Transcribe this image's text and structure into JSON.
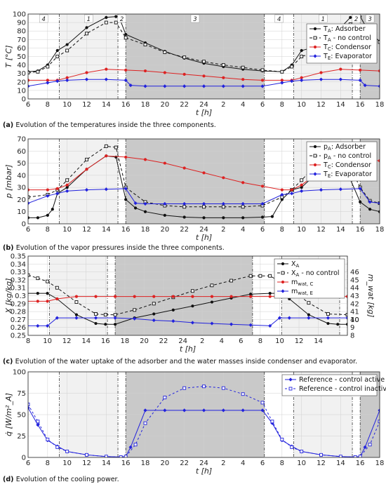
{
  "chart_data": [
    {
      "type": "line",
      "panel": "a",
      "caption_label": "(a)",
      "caption": "Evolution of the temperatures inside the three components.",
      "xlabel": "t [h]",
      "ylabel": "T [°C]",
      "ylim": [
        0,
        100
      ],
      "yticks": [
        0,
        10,
        20,
        30,
        40,
        50,
        60,
        70,
        80,
        90,
        100
      ],
      "xticklabels": [
        "6",
        "8",
        "10",
        "12",
        "14",
        "16",
        "18",
        "20",
        "22",
        "24",
        "2",
        "4",
        "6",
        "8",
        "10",
        "12",
        "14",
        "16",
        "18"
      ],
      "phase_labels": [
        "4",
        "1",
        "2",
        "3",
        "4",
        "1",
        "2",
        "3"
      ],
      "legend": "top-right",
      "grid": true,
      "series": [
        {
          "name": "T_A: Adsorber",
          "legend_main": "T",
          "legend_sub": "A",
          "legend_rest": ": Adsorber",
          "color": "#111111",
          "dash": "",
          "marker": "dot",
          "x": [
            6,
            7,
            8,
            9,
            10,
            12,
            14,
            15,
            15.3,
            16,
            18,
            20,
            22,
            24,
            26,
            28,
            30,
            32,
            33,
            34,
            36,
            38,
            39,
            40,
            41,
            42
          ],
          "y": [
            32,
            33,
            40,
            57,
            64,
            84,
            96,
            97,
            97,
            76,
            66,
            56,
            48,
            42,
            38,
            35,
            33,
            32,
            40,
            57,
            63,
            84,
            96,
            97,
            77,
            68
          ]
        },
        {
          "name": "T_A - no control",
          "legend_main": "T",
          "legend_sub": "A",
          "legend_rest": " - no control",
          "color": "#111111",
          "dash": "4,3",
          "marker": "square",
          "x": [
            6,
            7,
            8,
            9,
            10,
            12,
            14,
            15,
            16,
            18,
            20,
            22,
            24,
            26,
            28,
            30,
            32,
            33,
            34,
            36,
            38,
            39,
            40,
            41,
            42
          ],
          "y": [
            31,
            32,
            38,
            50,
            57,
            77,
            90,
            90,
            72,
            64,
            55,
            49,
            44,
            40,
            37,
            34,
            32,
            38,
            50,
            57,
            77,
            88,
            86,
            73,
            67
          ]
        },
        {
          "name": "T_C: Condensor",
          "legend_main": "T",
          "legend_sub": "C",
          "legend_rest": ": Condensor",
          "color": "#dd2222",
          "dash": "",
          "marker": "dot",
          "x": [
            6,
            8,
            9,
            10,
            12,
            14,
            16,
            18,
            20,
            22,
            24,
            26,
            28,
            30,
            32,
            33,
            34,
            36,
            38,
            40,
            42
          ],
          "y": [
            22,
            22,
            22,
            25,
            31,
            35,
            34,
            33,
            31,
            29,
            27,
            25,
            23,
            22,
            22,
            22,
            25,
            31,
            35,
            34,
            33
          ]
        },
        {
          "name": "T_E: Evaporator",
          "legend_main": "T",
          "legend_sub": "E",
          "legend_rest": ": Evaporator",
          "color": "#2222dd",
          "dash": "",
          "marker": "diamond",
          "x": [
            6,
            8,
            9,
            10,
            12,
            14,
            16,
            16.5,
            18,
            20,
            22,
            24,
            26,
            28,
            30,
            32,
            33,
            34,
            36,
            38,
            40,
            40.5,
            42
          ],
          "y": [
            15,
            19,
            21,
            22,
            23,
            23,
            22,
            16,
            15,
            15,
            15,
            15,
            15,
            15,
            15,
            19,
            21,
            22,
            23,
            23,
            22,
            16,
            15
          ]
        }
      ]
    },
    {
      "type": "line",
      "panel": "b",
      "caption_label": "(b)",
      "caption": "Evolution of the vapor pressures inside the three components.",
      "xlabel": "t [h]",
      "ylabel": "p [mbar]",
      "ylim": [
        0,
        70
      ],
      "yticks": [
        0,
        10,
        20,
        30,
        40,
        50,
        60,
        70
      ],
      "xticklabels": [
        "6",
        "8",
        "10",
        "12",
        "14",
        "16",
        "18",
        "20",
        "22",
        "24",
        "2",
        "4",
        "6",
        "8",
        "10",
        "12",
        "14",
        "16",
        "18"
      ],
      "legend": "top-right",
      "grid": true,
      "series": [
        {
          "name": "p_A: Adsorber",
          "legend_main": "p",
          "legend_sub": "A",
          "legend_rest": ": Adsorber",
          "color": "#111111",
          "dash": "",
          "marker": "dot",
          "x": [
            6,
            7,
            8,
            8.5,
            9,
            10,
            12,
            14,
            15,
            16,
            17,
            18,
            20,
            22,
            24,
            26,
            28,
            30,
            31,
            32,
            33,
            34,
            36,
            38,
            40,
            41,
            42
          ],
          "y": [
            5,
            5,
            7,
            12,
            25,
            30,
            45,
            56,
            55,
            20,
            13,
            10,
            7,
            5.5,
            5,
            5,
            5,
            5.5,
            6,
            20,
            28,
            30,
            45,
            55,
            18,
            12,
            10
          ]
        },
        {
          "name": "p_A - no control",
          "legend_main": "p",
          "legend_sub": "A",
          "legend_rest": " - no control",
          "color": "#111111",
          "dash": "4,3",
          "marker": "square",
          "x": [
            6,
            8,
            9,
            10,
            12,
            14,
            15,
            16,
            18,
            20,
            22,
            24,
            26,
            28,
            30,
            32,
            33,
            34,
            36,
            38,
            40,
            41,
            42
          ],
          "y": [
            22,
            24,
            28,
            36,
            53,
            64,
            63,
            30,
            18,
            15,
            14,
            14,
            14,
            14,
            15,
            22,
            28,
            36,
            53,
            62,
            30,
            19,
            17
          ]
        },
        {
          "name": "T_C: Condensor",
          "legend_main": "T",
          "legend_sub": "C",
          "legend_rest": ": Condensor",
          "color": "#dd2222",
          "dash": "",
          "marker": "dot",
          "x": [
            6,
            8,
            9,
            10,
            12,
            14,
            16,
            18,
            20,
            22,
            24,
            26,
            28,
            30,
            32,
            33,
            34,
            36,
            38,
            40,
            42
          ],
          "y": [
            28,
            28,
            29,
            32,
            45,
            56,
            55,
            53,
            50,
            46,
            42,
            38,
            34,
            31,
            28,
            28,
            32,
            44,
            52,
            53,
            52
          ]
        },
        {
          "name": "T_E: Evaporator",
          "legend_main": "T",
          "legend_sub": "E",
          "legend_rest": ": Evaporator",
          "color": "#2222dd",
          "dash": "",
          "marker": "diamond",
          "x": [
            6,
            8,
            9,
            10,
            12,
            14,
            16,
            17,
            18,
            20,
            22,
            24,
            26,
            28,
            30,
            32,
            33,
            34,
            36,
            38,
            40,
            41,
            42
          ],
          "y": [
            17,
            23,
            25,
            27,
            28,
            28.5,
            29,
            17,
            16.5,
            16.5,
            16.5,
            16.5,
            16.5,
            16.5,
            16.5,
            24,
            25,
            27,
            28,
            28.5,
            29,
            18,
            17
          ]
        }
      ]
    },
    {
      "type": "line",
      "panel": "c",
      "caption_label": "(c)",
      "caption": "Evolution of the water uptake of the adsorber and the water masses inside condenser and evaporator.",
      "xlabel": "t [h]",
      "ylabel": "X [kg/kg]",
      "ylabel_right": "m_wat [kg]",
      "ylim": [
        0.25,
        0.35
      ],
      "ylim_right": [
        8,
        46
      ],
      "yticks": [
        "0.25",
        "0.26",
        "0.27",
        "0.28",
        "0.29",
        "0.3",
        "0.31",
        "0.32",
        "0.33",
        "0.34",
        "0.35"
      ],
      "yticks_right": [
        "8",
        "9",
        "10",
        "40",
        "41",
        "42",
        "43",
        "44",
        "45",
        "46"
      ],
      "xticklabels": [
        "8",
        "10",
        "12",
        "14",
        "16",
        "18",
        "20",
        "22",
        "24",
        "2",
        "4",
        "6",
        "8",
        "10",
        "12",
        "14"
      ],
      "legend": "top-right",
      "grid": true,
      "series": [
        {
          "name": "X_A",
          "legend_main": "X",
          "legend_sub": "A",
          "legend_rest": "",
          "color": "#111111",
          "dash": "",
          "marker": "dot",
          "x": [
            6,
            8,
            9,
            10,
            12,
            14,
            15,
            16,
            18,
            20,
            22,
            24,
            26,
            28,
            30,
            32,
            33,
            34,
            36,
            38,
            39,
            40
          ],
          "y": [
            0.303,
            0.303,
            0.303,
            0.296,
            0.276,
            0.265,
            0.264,
            0.264,
            0.272,
            0.277,
            0.282,
            0.287,
            0.292,
            0.297,
            0.302,
            0.303,
            0.303,
            0.296,
            0.276,
            0.265,
            0.264,
            0.264
          ]
        },
        {
          "name": "X_A - no control",
          "legend_main": "X",
          "legend_sub": "A",
          "legend_rest": " - no control",
          "color": "#111111",
          "dash": "4,3",
          "marker": "square",
          "x": [
            6,
            7,
            8,
            9,
            10,
            12,
            14,
            15,
            16,
            18,
            20,
            22,
            24,
            26,
            28,
            30,
            31,
            32,
            33,
            34,
            36,
            38,
            40
          ],
          "y": [
            0.326,
            0.326,
            0.322,
            0.318,
            0.31,
            0.292,
            0.277,
            0.276,
            0.276,
            0.282,
            0.29,
            0.298,
            0.306,
            0.313,
            0.319,
            0.325,
            0.325,
            0.325,
            0.318,
            0.31,
            0.291,
            0.277,
            0.276
          ]
        },
        {
          "name": "m_wat, C",
          "legend_main": "m",
          "legend_sub": "wat, C",
          "legend_rest": "",
          "color": "#dd2222",
          "dash": "",
          "marker": "dot",
          "axis": "right",
          "x": [
            6,
            8,
            9,
            10,
            12,
            14,
            16,
            18,
            20,
            22,
            24,
            26,
            28,
            30,
            32,
            33,
            34,
            36,
            38,
            40
          ],
          "y": [
            42.3,
            42.3,
            42.3,
            42.6,
            42.9,
            42.9,
            42.9,
            42.9,
            42.9,
            42.9,
            42.9,
            42.9,
            42.9,
            42.9,
            42.9,
            42.9,
            42.9,
            42.9,
            42.9,
            42.9
          ]
        },
        {
          "name": "m_wat, E",
          "legend_main": "m",
          "legend_sub": "wat, E",
          "legend_rest": "",
          "color": "#2222dd",
          "dash": "",
          "marker": "diamond",
          "axis": "right",
          "x": [
            6,
            8,
            9,
            10,
            12,
            14,
            16,
            18,
            20,
            22,
            24,
            26,
            28,
            30,
            32,
            33,
            34,
            36,
            38,
            40
          ],
          "y": [
            9.2,
            9.2,
            9.2,
            10.2,
            10.2,
            10.2,
            10.2,
            10.1,
            9.9,
            9.8,
            9.6,
            9.5,
            9.4,
            9.3,
            9.2,
            10.2,
            10.2,
            10.2,
            10.2,
            10.2
          ]
        }
      ]
    },
    {
      "type": "line",
      "panel": "d",
      "caption_label": "(d)",
      "caption": "Evolution of the cooling power.",
      "xlabel": "t [h]",
      "ylabel": "q̇ [W/m²_A]",
      "ylim": [
        0,
        100
      ],
      "yticks": [
        0,
        25,
        50,
        75,
        100
      ],
      "xticklabels": [
        "6",
        "8",
        "10",
        "12",
        "14",
        "16",
        "18",
        "20",
        "22",
        "24",
        "2",
        "4",
        "6",
        "8",
        "10",
        "12",
        "14",
        "16",
        "18"
      ],
      "legend": "top-right",
      "grid": true,
      "series": [
        {
          "name": "Reference - control active",
          "legend_main": "Reference - control active",
          "legend_sub": "",
          "legend_rest": "",
          "color": "#2222dd",
          "dash": "",
          "marker": "diamond",
          "x": [
            6,
            7,
            8,
            9,
            10,
            12,
            14,
            15.5,
            16,
            16.5,
            18,
            20,
            22,
            24,
            26,
            28,
            30,
            31,
            32,
            33,
            34,
            36,
            38,
            39.5,
            40,
            40.5,
            42
          ],
          "y": [
            58,
            38,
            20,
            13,
            7,
            3,
            1,
            0.5,
            1,
            12,
            55,
            55,
            55,
            55,
            55,
            55,
            55,
            40,
            20,
            13,
            7,
            3,
            1,
            0.5,
            1,
            12,
            55
          ]
        },
        {
          "name": "Reference - control inactive",
          "legend_main": "Reference - control inactive",
          "legend_sub": "",
          "legend_rest": "",
          "color": "#2222dd",
          "dash": "3,3",
          "marker": "square",
          "x": [
            6,
            7,
            8,
            9,
            10,
            12,
            14,
            15.5,
            16,
            17,
            18,
            20,
            22,
            24,
            26,
            28,
            30,
            31,
            32,
            33,
            34,
            36,
            38,
            39.5,
            40,
            41,
            42
          ],
          "y": [
            62,
            42,
            21,
            12,
            7,
            3,
            1,
            0.5,
            1,
            15,
            40,
            70,
            81,
            83,
            81,
            74,
            64,
            42,
            21,
            12,
            7,
            3,
            1,
            0.5,
            1,
            15,
            42
          ]
        }
      ]
    }
  ]
}
